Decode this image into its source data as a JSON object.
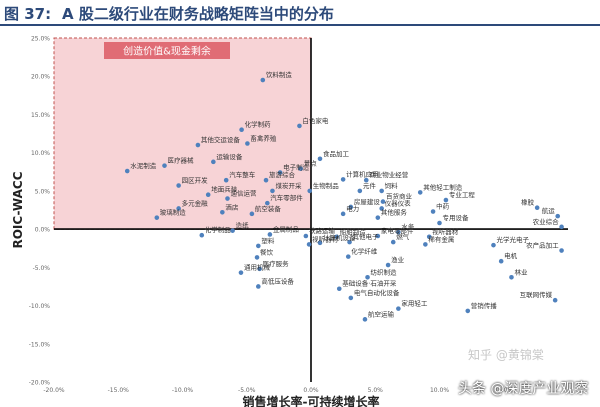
{
  "header": {
    "figure_number": "图 37:",
    "title": "A 股二级行业在财务战略矩阵当中的分布"
  },
  "watermark": {
    "site": "知乎 @黄锦棠",
    "author": "头条 @深度产业观察"
  },
  "colors": {
    "title": "#2d4a7a",
    "point": "#4f81bd",
    "region_fill": "#f7d3d6",
    "region_border": "#c0504d",
    "region_label_bg": "#e06c75",
    "axis": "#000000",
    "tick": "#666666"
  },
  "chart_data": {
    "type": "scatter",
    "xlabel": "销售增长率-可持续增长率",
    "ylabel": "ROIC-WACC",
    "xlim": [
      -0.2,
      0.2
    ],
    "ylim": [
      -0.2,
      0.25
    ],
    "x_ticks": [
      "-20.0%",
      "-15.0%",
      "-10.0%",
      "-5.0%",
      "0.0%",
      "5.0%",
      "10.0%",
      "15.0%"
    ],
    "y_ticks": [
      "25.0%",
      "20.0%",
      "15.0%",
      "10.0%",
      "5.0%",
      "0.0%",
      "-5.0%",
      "-10.0%",
      "-15.0%",
      "-20.0%"
    ],
    "region_label": "创造价值&现金剩余",
    "points": [
      {
        "label": "饮料制造",
        "x": -0.0375,
        "y": 0.195
      },
      {
        "label": "白色家电",
        "x": -0.009,
        "y": 0.135
      },
      {
        "label": "化学制药",
        "x": -0.054,
        "y": 0.13
      },
      {
        "label": "其他交运设备",
        "x": -0.088,
        "y": 0.11
      },
      {
        "label": "畜禽养殖",
        "x": -0.0495,
        "y": 0.112
      },
      {
        "label": "医疗器械",
        "x": -0.114,
        "y": 0.083
      },
      {
        "label": "水泥制造",
        "x": -0.143,
        "y": 0.076
      },
      {
        "label": "运输设备",
        "x": -0.076,
        "y": 0.088
      },
      {
        "label": "电子制造",
        "x": -0.024,
        "y": 0.074
      },
      {
        "label": "景点",
        "x": -0.008,
        "y": 0.079
      },
      {
        "label": "汽车整车",
        "x": -0.066,
        "y": 0.064
      },
      {
        "label": "旅游综合",
        "x": -0.035,
        "y": 0.064
      },
      {
        "label": "园区开发",
        "x": -0.103,
        "y": 0.057
      },
      {
        "label": "煤炭开采",
        "x": -0.03,
        "y": 0.05
      },
      {
        "label": "生物制品",
        "x": -0.001,
        "y": 0.05
      },
      {
        "label": "地面兵装",
        "x": -0.08,
        "y": 0.045
      },
      {
        "label": "通信运营",
        "x": -0.065,
        "y": 0.04
      },
      {
        "label": "汽车零部件",
        "x": -0.034,
        "y": 0.034
      },
      {
        "label": "多元金融",
        "x": -0.103,
        "y": 0.027
      },
      {
        "label": "酒店",
        "x": -0.069,
        "y": 0.022
      },
      {
        "label": "航空装备",
        "x": -0.046,
        "y": 0.02
      },
      {
        "label": "玻璃制造",
        "x": -0.12,
        "y": 0.015
      },
      {
        "label": "造纸",
        "x": -0.061,
        "y": -0.002
      },
      {
        "label": "化学制品",
        "x": -0.085,
        "y": -0.008
      },
      {
        "label": "金属制品",
        "x": -0.032,
        "y": -0.007
      },
      {
        "label": "铁路运输",
        "x": -0.004,
        "y": -0.009
      },
      {
        "label": "塑料",
        "x": -0.041,
        "y": -0.022
      },
      {
        "label": "餐饮",
        "x": -0.042,
        "y": -0.037
      },
      {
        "label": "医疗服务",
        "x": -0.04,
        "y": -0.052
      },
      {
        "label": "通用机械",
        "x": -0.0545,
        "y": -0.057
      },
      {
        "label": "高低压设备",
        "x": -0.041,
        "y": -0.075
      },
      {
        "label": "视听器材",
        "x": -0.0015,
        "y": -0.02
      },
      {
        "label": "计算机设备",
        "x": 0.007,
        "y": -0.018
      },
      {
        "label": "船舶制造",
        "x": 0.02,
        "y": -0.01
      },
      {
        "label": "食品加工",
        "x": 0.007,
        "y": 0.092
      },
      {
        "label": "计算机应用",
        "x": 0.025,
        "y": 0.065
      },
      {
        "label": "元件",
        "x": 0.038,
        "y": 0.05
      },
      {
        "label": "饲料",
        "x": 0.055,
        "y": 0.05
      },
      {
        "label": "商业物业经营",
        "x": 0.043,
        "y": 0.064
      },
      {
        "label": "其他轻工制造",
        "x": 0.085,
        "y": 0.048
      },
      {
        "label": "百货商业",
        "x": 0.056,
        "y": 0.036
      },
      {
        "label": "专业工程",
        "x": 0.105,
        "y": 0.038
      },
      {
        "label": "房屋建设",
        "x": 0.031,
        "y": 0.029
      },
      {
        "label": "仪器仪表",
        "x": 0.055,
        "y": 0.027
      },
      {
        "label": "中药",
        "x": 0.095,
        "y": 0.023
      },
      {
        "label": "电力",
        "x": 0.025,
        "y": 0.02
      },
      {
        "label": "其他服务",
        "x": 0.052,
        "y": 0.015
      },
      {
        "label": "专用设备",
        "x": 0.1,
        "y": 0.008
      },
      {
        "label": "水务",
        "x": 0.068,
        "y": -0.004
      },
      {
        "label": "家电零部件",
        "x": 0.052,
        "y": -0.009
      },
      {
        "label": "视听器材",
        "x": 0.092,
        "y": -0.01
      },
      {
        "label": "燃气",
        "x": 0.064,
        "y": -0.017
      },
      {
        "label": "稀有金属",
        "x": 0.089,
        "y": -0.02
      },
      {
        "label": "光学光电子",
        "x": 0.142,
        "y": -0.021
      },
      {
        "label": "其他电子",
        "x": 0.03,
        "y": -0.017
      },
      {
        "label": "化学纤维",
        "x": 0.029,
        "y": -0.036
      },
      {
        "label": "渔业",
        "x": 0.06,
        "y": -0.047
      },
      {
        "label": "纺织制造",
        "x": 0.044,
        "y": -0.063
      },
      {
        "label": "基础设备·石油开采",
        "x": 0.022,
        "y": -0.078
      },
      {
        "label": "电气自动化设备",
        "x": 0.031,
        "y": -0.09
      },
      {
        "label": "航空运输",
        "x": 0.042,
        "y": -0.118
      },
      {
        "label": "家用轻工",
        "x": 0.068,
        "y": -0.104
      },
      {
        "label": "营销传播",
        "x": 0.122,
        "y": -0.107
      },
      {
        "label": "互联网传媒",
        "x": 0.19,
        "y": -0.093
      },
      {
        "label": "林业",
        "x": 0.156,
        "y": -0.063
      },
      {
        "label": "电机",
        "x": 0.148,
        "y": -0.042
      },
      {
        "label": "农产品加工",
        "x": 0.195,
        "y": -0.028
      },
      {
        "label": "橡胶",
        "x": 0.176,
        "y": 0.028
      },
      {
        "label": "航运",
        "x": 0.192,
        "y": 0.017
      },
      {
        "label": "农业综合",
        "x": 0.195,
        "y": 0.003
      }
    ]
  }
}
